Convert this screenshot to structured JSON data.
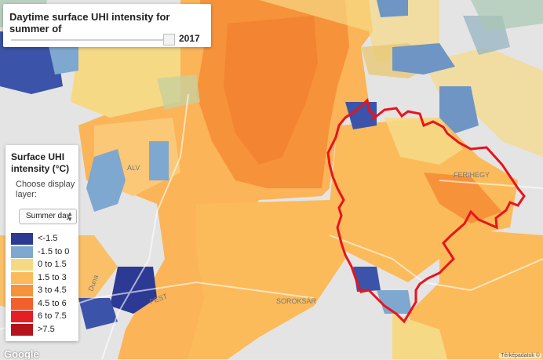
{
  "year_panel": {
    "title": "Daytime surface UHI intensity for summer of",
    "year": "2017"
  },
  "legend": {
    "title": "Surface UHI intensity (°C)",
    "hint": "Choose display layer:",
    "select_value": "Summer day",
    "items": [
      {
        "label": "<-1.5",
        "color": "#2c3a94"
      },
      {
        "label": "-1.5 to 0",
        "color": "#7ea8cf"
      },
      {
        "label": "0 to 1.5",
        "color": "#f6d985"
      },
      {
        "label": "1.5 to 3",
        "color": "#fbbb5a"
      },
      {
        "label": "3 to 4.5",
        "color": "#f6923a"
      },
      {
        "label": "4.5 to 6",
        "color": "#f15f2a"
      },
      {
        "label": "6 to 7.5",
        "color": "#e31e24"
      },
      {
        "label": ">7.5",
        "color": "#b5121b"
      }
    ]
  },
  "map": {
    "place_labels": [
      "ALV",
      "Duna",
      "PEST",
      "SOROKSÁR",
      "FERIHEGY"
    ],
    "boundary_color": "#e8141c",
    "google_logo": "Google",
    "attribution": "Térképadatok ©"
  }
}
